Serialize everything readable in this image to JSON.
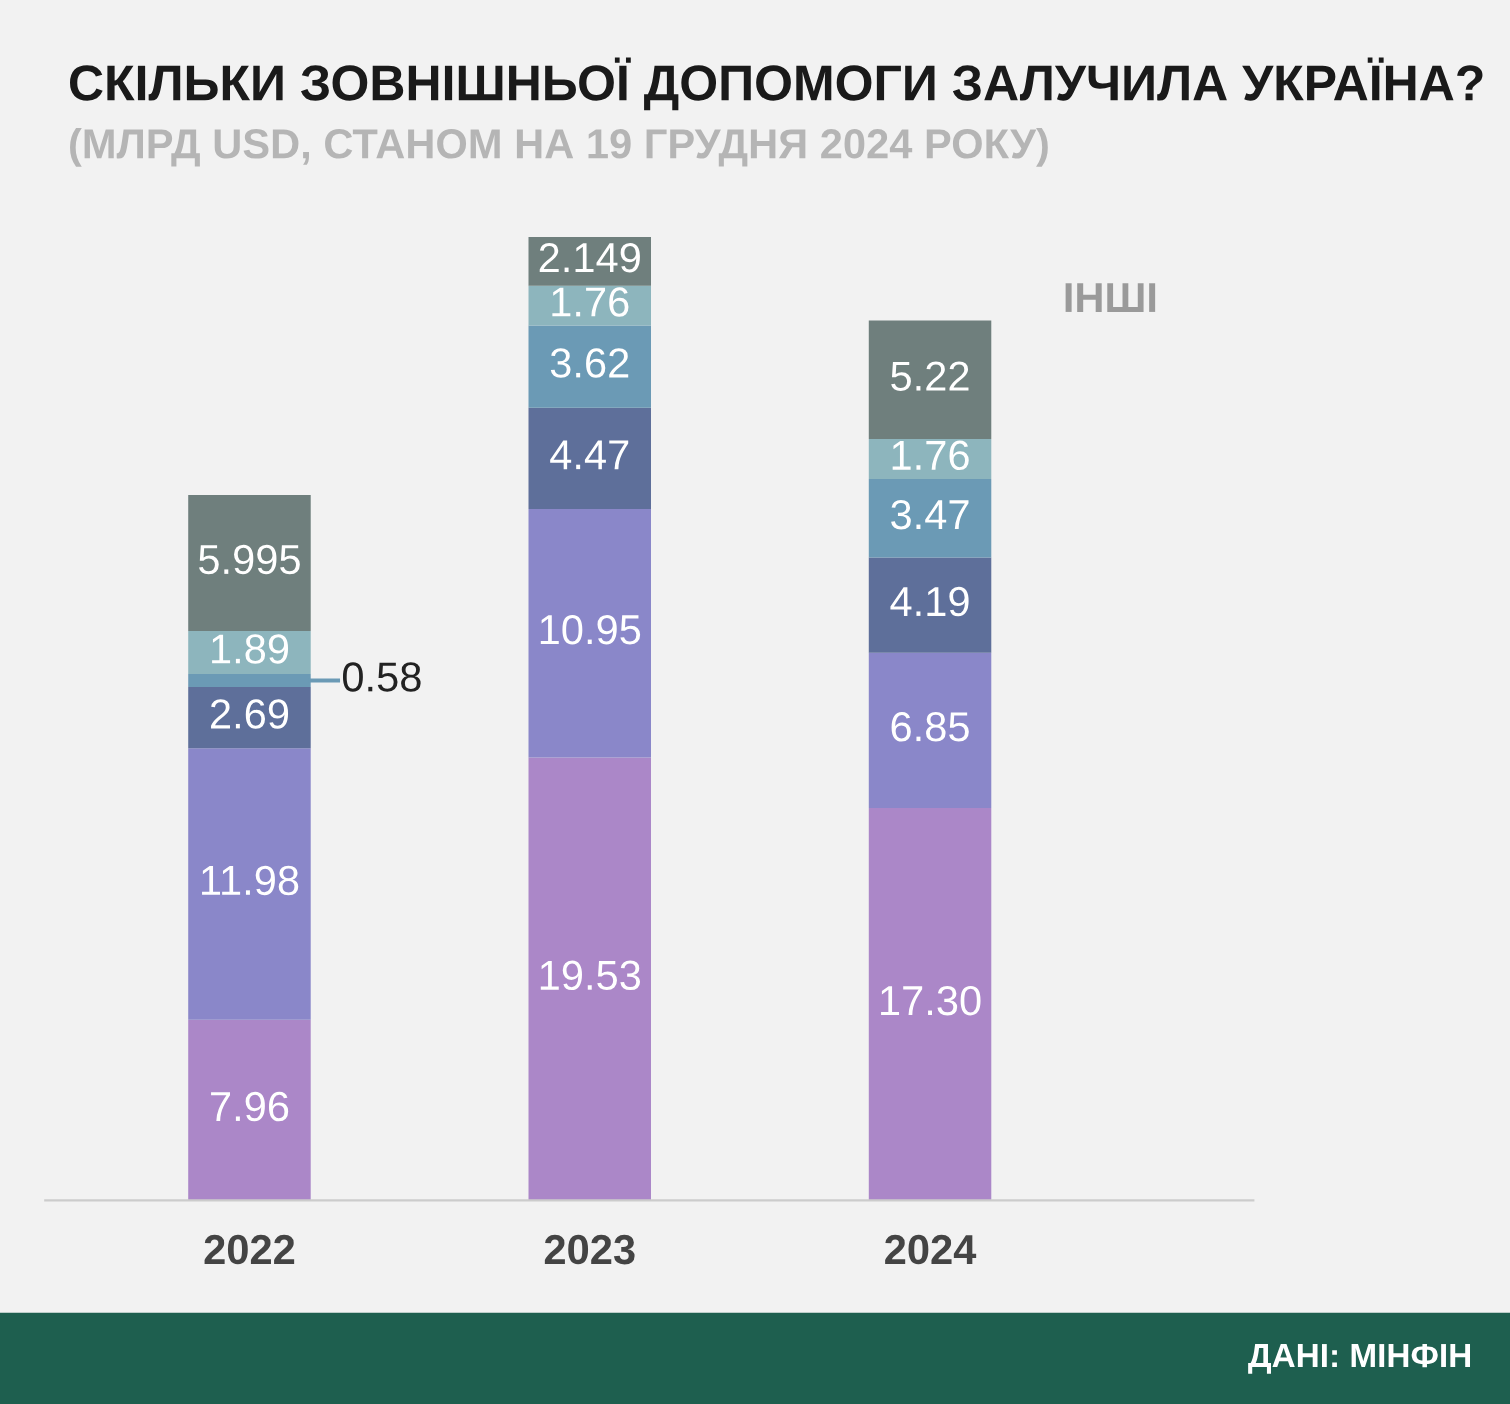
{
  "chart_data": {
    "type": "bar",
    "stacked": true,
    "title": "СКІЛЬКИ ЗОВНІШНЬОЇ ДОПОМОГИ ЗАЛУЧИЛА УКРАЇНА?",
    "subtitle": "(МЛРД USD, СТАНОМ НА 19 ГРУДНЯ 2024 РОКУ)",
    "categories": [
      "2022",
      "2023",
      "2024"
    ],
    "series": [
      {
        "color": "#ab87c8",
        "values": [
          7.96,
          19.53,
          17.3
        ],
        "value_labels": [
          "7.96",
          "19.53",
          "17.30"
        ]
      },
      {
        "color": "#8a87c9",
        "values": [
          11.98,
          10.95,
          6.85
        ],
        "value_labels": [
          "11.98",
          "10.95",
          "6.85"
        ]
      },
      {
        "color": "#5e6f9a",
        "values": [
          2.69,
          4.47,
          4.19
        ],
        "value_labels": [
          "2.69",
          "4.47",
          "4.19"
        ]
      },
      {
        "color": "#6b9ab5",
        "values": [
          0.58,
          3.62,
          3.47
        ],
        "value_labels": [
          "0.58",
          "3.62",
          "3.47"
        ]
      },
      {
        "color": "#8db5bd",
        "values": [
          1.89,
          1.76,
          1.76
        ],
        "value_labels": [
          "1.89",
          "1.76",
          "1.76"
        ]
      },
      {
        "name": "ІНШІ",
        "color": "#6f7f7d",
        "values": [
          5.995,
          2.149,
          5.22
        ],
        "value_labels": [
          "5.995",
          "2.149",
          "5.22"
        ]
      }
    ],
    "annotations": [
      "ДАНІ: МІНФІН"
    ],
    "legend": false,
    "grid": false
  }
}
